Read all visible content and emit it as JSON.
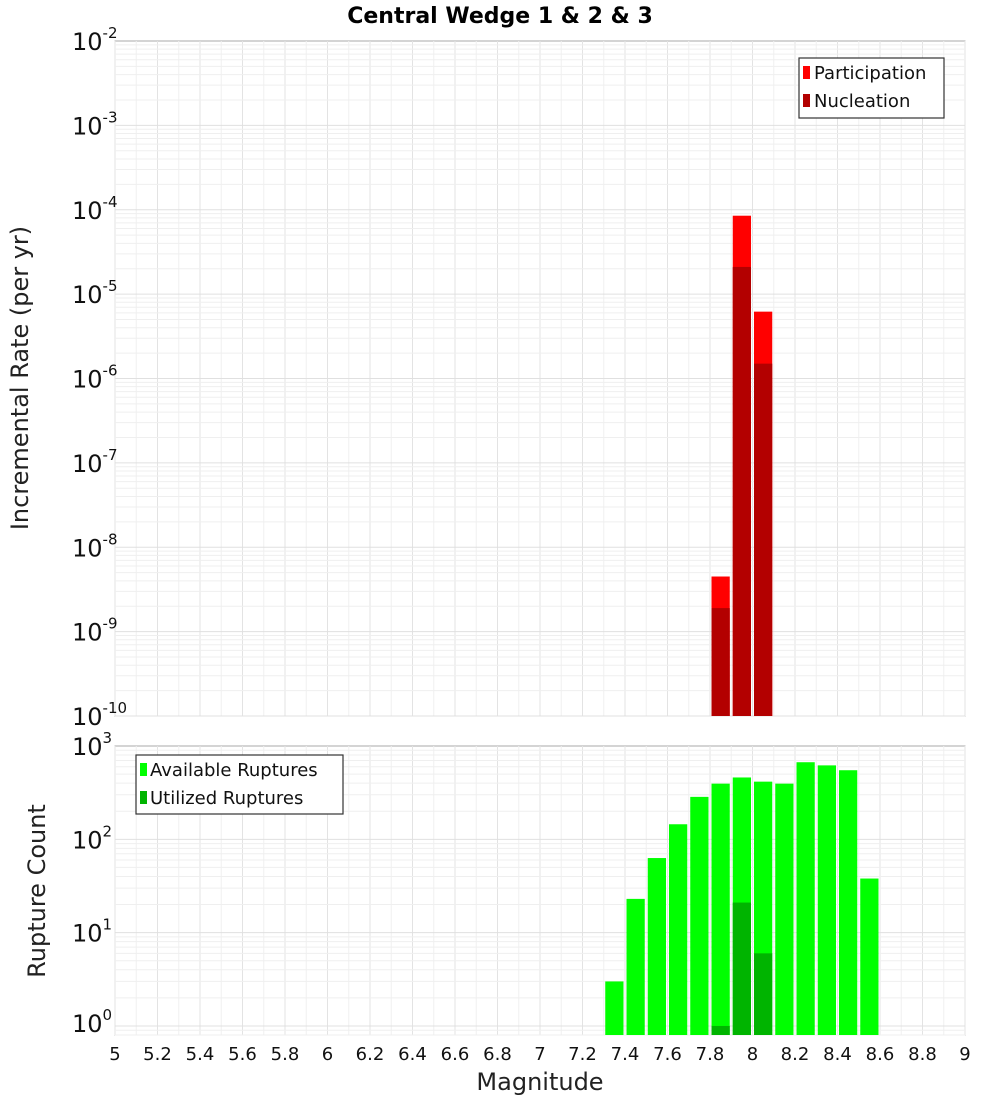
{
  "chart_data": [
    {
      "type": "bar",
      "title": "Central Wedge 1 & 2 & 3",
      "xlabel": "",
      "ylabel": "Incremental Rate (per yr)",
      "yscale": "log",
      "xlim": [
        5,
        9
      ],
      "ylim_exponents": [
        -10,
        -2
      ],
      "y_tick_labels": [
        {
          "base": "10",
          "exp": "-2"
        },
        {
          "base": "10",
          "exp": "-3"
        },
        {
          "base": "10",
          "exp": "-4"
        },
        {
          "base": "10",
          "exp": "-5"
        },
        {
          "base": "10",
          "exp": "-6"
        },
        {
          "base": "10",
          "exp": "-7"
        },
        {
          "base": "10",
          "exp": "-8"
        },
        {
          "base": "10",
          "exp": "-9"
        },
        {
          "base": "10",
          "exp": "-10"
        }
      ],
      "bar_width": 0.1,
      "legend_position": "top-right",
      "series": [
        {
          "name": "Participation",
          "color": "#ff0000",
          "x": [
            7.85,
            7.95,
            8.05
          ],
          "values": [
            4.5e-09,
            8.5e-05,
            6.2e-06
          ]
        },
        {
          "name": "Nucleation",
          "color": "#b30000",
          "x": [
            7.85,
            7.95,
            8.05
          ],
          "values": [
            1.9e-09,
            2.1e-05,
            1.5e-06
          ]
        }
      ]
    },
    {
      "type": "bar",
      "title": "",
      "xlabel": "Magnitude",
      "ylabel": "Rupture Count",
      "yscale": "log",
      "xlim": [
        5,
        9
      ],
      "ylim": [
        0.8,
        1000
      ],
      "y_tick_labels": [
        {
          "base": "10",
          "exp": "3",
          "value": 1000
        },
        {
          "base": "10",
          "exp": "2",
          "value": 100
        },
        {
          "base": "10",
          "exp": "1",
          "value": 10
        },
        {
          "base": "10",
          "exp": "0",
          "value": 1
        }
      ],
      "x_tick_labels": [
        "5",
        "5.2",
        "5.4",
        "5.6",
        "5.8",
        "6",
        "6.2",
        "6.4",
        "6.6",
        "6.8",
        "7",
        "7.2",
        "7.4",
        "7.6",
        "7.8",
        "8",
        "8.2",
        "8.4",
        "8.6",
        "8.8",
        "9"
      ],
      "bar_width": 0.1,
      "legend_position": "top-left",
      "series": [
        {
          "name": "Available Ruptures",
          "color": "#00ff00",
          "x": [
            7.35,
            7.45,
            7.55,
            7.65,
            7.75,
            7.85,
            7.95,
            8.05,
            8.15,
            8.25,
            8.35,
            8.45,
            8.55
          ],
          "values": [
            3,
            23,
            63,
            145,
            285,
            395,
            460,
            415,
            395,
            670,
            620,
            550,
            38
          ]
        },
        {
          "name": "Utilized Ruptures",
          "color": "#00b400",
          "x": [
            7.85,
            7.95,
            8.05
          ],
          "values": [
            1,
            21,
            6
          ]
        }
      ]
    }
  ]
}
